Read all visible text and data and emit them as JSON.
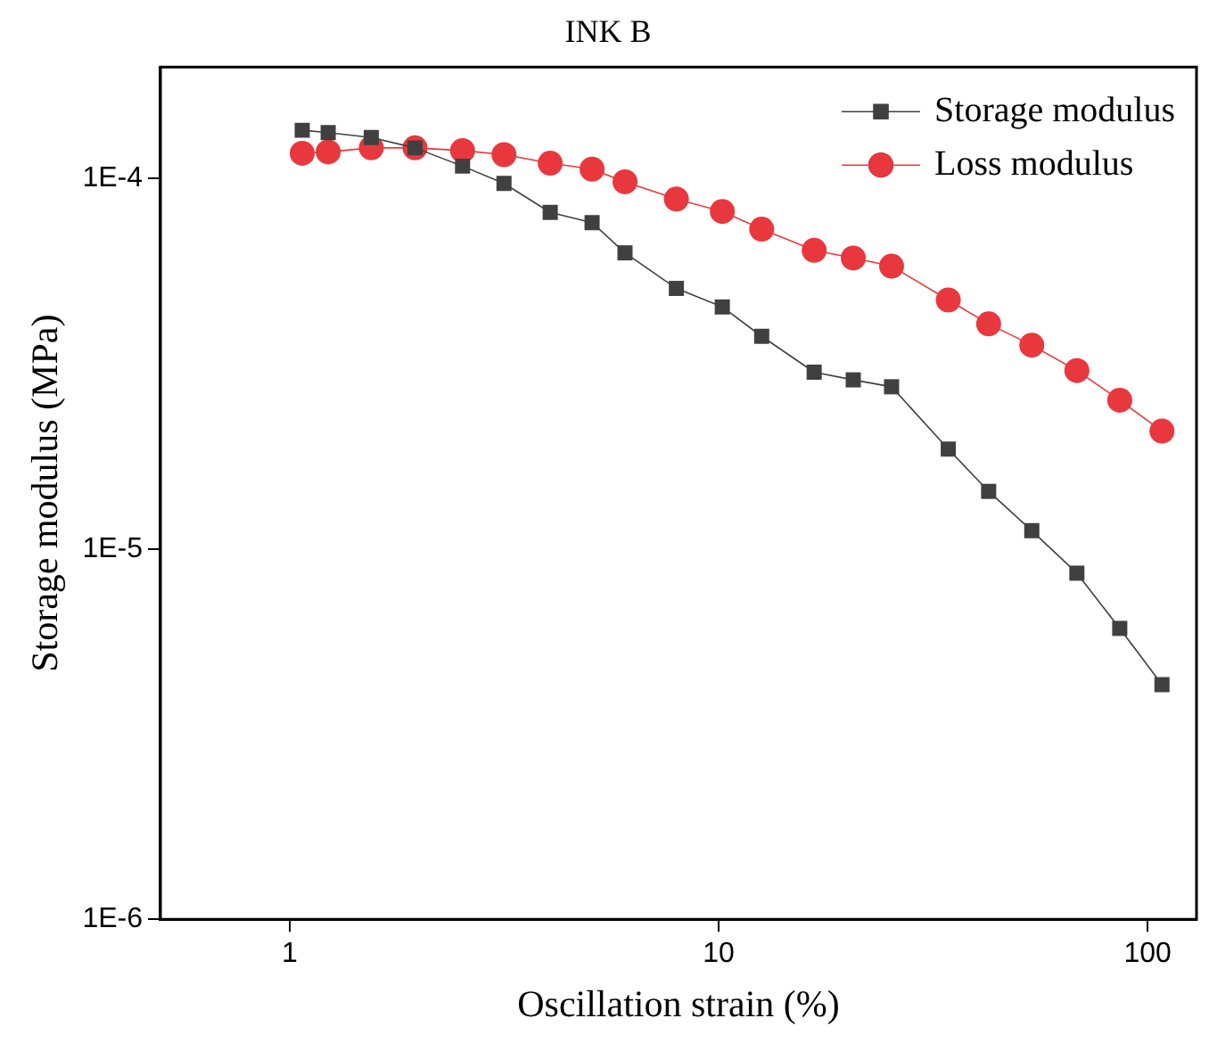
{
  "chart_data": {
    "type": "line",
    "title": "INK B",
    "xlabel": "Oscillation strain (%)",
    "ylabel": "Storage modulus (MPa)",
    "x": [
      1.07,
      1.23,
      1.55,
      1.96,
      2.53,
      3.16,
      4.05,
      5.07,
      6.05,
      7.97,
      10.2,
      12.6,
      16.7,
      20.6,
      25.3,
      34.3,
      42.6,
      53.7,
      68.4,
      86.1,
      108
    ],
    "series": [
      {
        "name": "Storage modulus",
        "color": "#404040",
        "marker": "square",
        "values": [
          0.000135,
          0.000133,
          0.000129,
          0.000121,
          0.000108,
          9.7e-05,
          8.1e-05,
          7.6e-05,
          6.3e-05,
          5.05e-05,
          4.5e-05,
          3.75e-05,
          3e-05,
          2.86e-05,
          2.74e-05,
          1.86e-05,
          1.43e-05,
          1.12e-05,
          8.6e-06,
          6.1e-06,
          4.3e-06
        ]
      },
      {
        "name": "Loss modulus",
        "color": "#e8383d",
        "marker": "circle",
        "values": [
          0.000117,
          0.000118,
          0.000121,
          0.000121,
          0.000119,
          0.000116,
          0.00011,
          0.000106,
          9.8e-05,
          8.8e-05,
          8.15e-05,
          7.3e-05,
          6.4e-05,
          6.1e-05,
          5.8e-05,
          4.7e-05,
          4.05e-05,
          3.55e-05,
          3.03e-05,
          2.52e-05,
          2.08e-05
        ]
      }
    ],
    "log": "xy",
    "xlim": [
      0.5,
      130
    ],
    "xticks": [
      1,
      10,
      100
    ],
    "ylim": [
      1e-06,
      0.0002
    ],
    "yticks": [
      {
        "value": 1e-06,
        "label": "1E-6"
      },
      {
        "value": 1e-05,
        "label": "1E-5"
      },
      {
        "value": 0.0001,
        "label": "1E-4"
      }
    ],
    "grid": false,
    "legend": "top right",
    "line_style": "solid"
  }
}
